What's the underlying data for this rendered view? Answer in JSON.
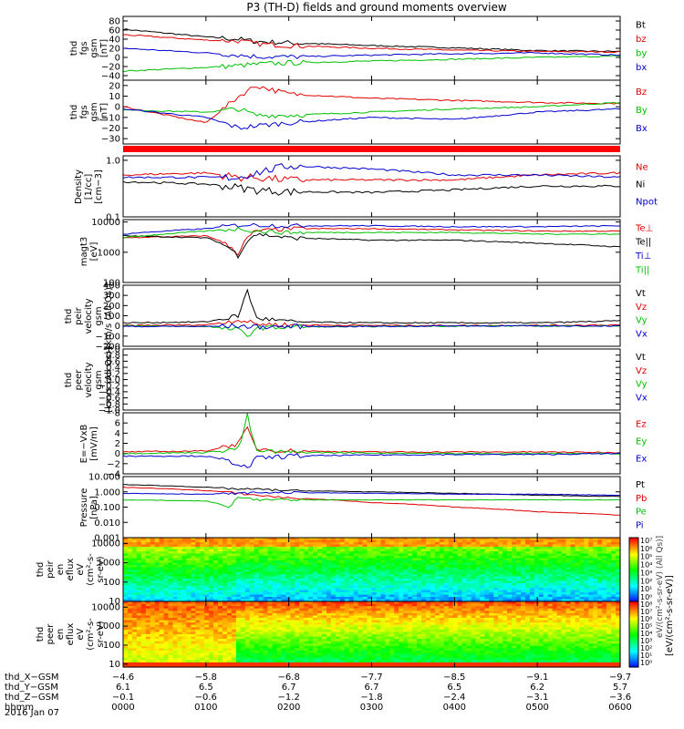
{
  "figure": {
    "title": "P3 (TH-D) fields and ground moments overview",
    "date": "2016 Jan 07",
    "colorbar_label": "[eV/(cm²-s-sr-eV)]",
    "colorbar_overlay": "eV/(cm²-s-sr-eV) (All Qs)]"
  },
  "chart_data": [
    {
      "type": "line",
      "ylabel": [
        "thd",
        "fgs",
        "gsm",
        "[nT]"
      ],
      "ylim": [
        -50,
        90
      ],
      "ticks": [
        "80",
        "60",
        "40",
        "20",
        "0",
        "−20",
        "−40"
      ],
      "tick_values": [
        80,
        60,
        40,
        20,
        0,
        -20,
        -40
      ],
      "legend": [
        "Bt",
        "bz",
        "by",
        "bx"
      ],
      "series": [
        {
          "name": "Bt",
          "color": "#000000",
          "x": [
            0,
            1,
            1.4,
            1.6,
            2,
            3,
            4,
            5,
            6
          ],
          "values": [
            62,
            45,
            40,
            35,
            32,
            26,
            21,
            15,
            13
          ]
        },
        {
          "name": "bz",
          "color": "#e00000",
          "x": [
            0,
            1,
            1.4,
            1.6,
            2,
            3,
            4,
            5,
            6
          ],
          "values": [
            50,
            38,
            36,
            30,
            26,
            20,
            16,
            13,
            12
          ]
        },
        {
          "name": "by",
          "color": "#00c000",
          "x": [
            0,
            1,
            1.4,
            1.6,
            2,
            3,
            4,
            5,
            6
          ],
          "values": [
            -30,
            -22,
            -18,
            -15,
            -12,
            -8,
            -4,
            0,
            3
          ]
        },
        {
          "name": "bx",
          "color": "#0000d0",
          "x": [
            0,
            1,
            1.4,
            1.6,
            2,
            3,
            4,
            5,
            6
          ],
          "values": [
            20,
            10,
            5,
            2,
            1,
            5,
            8,
            10,
            5
          ]
        }
      ]
    },
    {
      "type": "line",
      "ylabel": [
        "thd",
        "fgs",
        "gsm",
        "[nT]"
      ],
      "ylim": [
        -35,
        25
      ],
      "ticks": [
        "20",
        "10",
        "0",
        "−10",
        "−20",
        "−30"
      ],
      "tick_values": [
        20,
        10,
        0,
        -10,
        -20,
        -30
      ],
      "legend": [
        "Bz",
        "By",
        "Bx"
      ],
      "series": [
        {
          "name": "Bz",
          "color": "#e00000",
          "x": [
            0,
            1,
            1.4,
            1.6,
            2,
            3,
            4,
            5,
            6
          ],
          "values": [
            0,
            -15,
            10,
            20,
            12,
            8,
            6,
            4,
            3
          ]
        },
        {
          "name": "By",
          "color": "#00c000",
          "x": [
            0,
            1,
            1.4,
            1.6,
            2,
            3,
            4,
            5,
            6
          ],
          "values": [
            -3,
            -5,
            -2,
            -8,
            -8,
            -5,
            -2,
            0,
            4
          ]
        },
        {
          "name": "Bx",
          "color": "#0000d0",
          "x": [
            0,
            1,
            1.4,
            1.6,
            2,
            3,
            4,
            5,
            6
          ],
          "values": [
            -2,
            -10,
            -20,
            -18,
            -15,
            -10,
            -12,
            -5,
            -2
          ]
        }
      ]
    },
    {
      "type": "line",
      "ylabel": [
        "Density",
        "[1/cc]",
        "[cm−3]"
      ],
      "ylim": [
        0.1,
        1.2
      ],
      "log": true,
      "ticks": [
        "1.0",
        "0.1"
      ],
      "tick_values": [
        1.0,
        0.1
      ],
      "legend": [
        "Ne",
        "Ni",
        "Npot"
      ],
      "series": [
        {
          "name": "Ne",
          "color": "#e00000",
          "x": [
            0,
            1,
            1.4,
            1.6,
            2,
            3,
            4,
            5,
            6
          ],
          "values": [
            0.55,
            0.6,
            0.5,
            0.5,
            0.45,
            0.45,
            0.45,
            0.55,
            0.6
          ]
        },
        {
          "name": "Ni",
          "color": "#000000",
          "x": [
            0,
            1,
            1.4,
            1.6,
            2,
            3,
            4,
            5,
            6
          ],
          "values": [
            0.42,
            0.38,
            0.33,
            0.3,
            0.28,
            0.27,
            0.3,
            0.35,
            0.35
          ]
        },
        {
          "name": "Npot",
          "color": "#0000d0",
          "x": [
            0,
            1,
            1.4,
            1.6,
            2,
            3,
            4,
            5,
            6
          ],
          "values": [
            0.5,
            0.5,
            0.5,
            0.6,
            0.8,
            0.7,
            0.55,
            0.55,
            0.5
          ]
        }
      ]
    },
    {
      "type": "line",
      "ylabel": [
        "magt3",
        "[eV]"
      ],
      "ylim": [
        100,
        12000
      ],
      "log": true,
      "ticks": [
        "10000",
        "1000",
        "100"
      ],
      "tick_values": [
        10000,
        1000,
        100
      ],
      "legend": [
        "Te⊥",
        "Te||",
        "Ti⊥",
        "Ti||"
      ],
      "series": [
        {
          "name": "Te⊥",
          "color": "#e00000",
          "x": [
            0,
            1,
            1.4,
            1.6,
            2,
            3,
            4,
            5,
            6
          ],
          "values": [
            3000,
            3500,
            800,
            5000,
            6000,
            6000,
            5500,
            5000,
            5000
          ]
        },
        {
          "name": "Te||",
          "color": "#000000",
          "x": [
            0,
            1,
            1.4,
            1.6,
            2,
            3,
            4,
            5,
            6
          ],
          "values": [
            3500,
            3000,
            700,
            4000,
            3000,
            2500,
            2500,
            2000,
            1500
          ]
        },
        {
          "name": "Ti⊥",
          "color": "#0000d0",
          "x": [
            0,
            1,
            1.4,
            1.6,
            2,
            3,
            4,
            5,
            6
          ],
          "values": [
            4000,
            6000,
            8000,
            8000,
            7500,
            7500,
            7000,
            7000,
            7500
          ]
        },
        {
          "name": "Ti||",
          "color": "#00c000",
          "x": [
            0,
            1,
            1.4,
            1.6,
            2,
            3,
            4,
            5,
            6
          ],
          "values": [
            3000,
            5000,
            6000,
            5000,
            4500,
            4500,
            4500,
            4000,
            4000
          ]
        }
      ]
    },
    {
      "type": "line",
      "ylabel": [
        "thd",
        "peir",
        "velocity",
        "gsm",
        "[km/s (All Qs)]"
      ],
      "ylim": [
        -200,
        400
      ],
      "ticks": [
        "400",
        "300",
        "200",
        "100",
        "0",
        "−100",
        "−200"
      ],
      "tick_values": [
        400,
        300,
        200,
        100,
        0,
        -100,
        -200
      ],
      "legend": [
        "Vt",
        "Vz",
        "Vy",
        "Vx"
      ],
      "series": [
        {
          "name": "Vt",
          "color": "#000000",
          "x": [
            0,
            1,
            1.4,
            1.5,
            1.6,
            2,
            3,
            4,
            5,
            6
          ],
          "values": [
            30,
            40,
            100,
            360,
            80,
            40,
            30,
            30,
            30,
            50
          ]
        },
        {
          "name": "Vz",
          "color": "#e00000",
          "x": [
            0,
            1,
            1.4,
            1.6,
            2,
            3,
            4,
            5,
            6
          ],
          "values": [
            5,
            10,
            60,
            20,
            10,
            5,
            5,
            5,
            10
          ]
        },
        {
          "name": "Vy",
          "color": "#00c000",
          "x": [
            0,
            1,
            1.4,
            1.5,
            1.6,
            2,
            3,
            4,
            5,
            6
          ],
          "values": [
            0,
            -5,
            -40,
            -100,
            -20,
            -10,
            -5,
            0,
            0,
            0
          ]
        },
        {
          "name": "Vx",
          "color": "#0000d0",
          "x": [
            0,
            1,
            1.4,
            1.6,
            2,
            3,
            4,
            5,
            6
          ],
          "values": [
            -5,
            -5,
            0,
            -10,
            -5,
            -5,
            0,
            0,
            0
          ]
        }
      ]
    },
    {
      "type": "line",
      "ylabel": [
        "thd",
        "peer",
        "velocity",
        "gsm",
        "[km/s (All Qs)]"
      ],
      "ylim": [
        -1.0,
        1.0
      ],
      "ticks": [
        "1.0",
        "0.8",
        "0.6",
        "0.4",
        "0.2",
        "0.0",
        "−0.2",
        "−0.4",
        "−0.6",
        "−0.8",
        "−1.0"
      ],
      "tick_values": [
        1.0,
        0.8,
        0.6,
        0.4,
        0.2,
        0.0,
        -0.2,
        -0.4,
        -0.6,
        -0.8,
        -1.0
      ],
      "legend": [
        "Vt",
        "Vz",
        "Vy",
        "Vx"
      ],
      "series": []
    },
    {
      "type": "line",
      "ylabel": [
        "E=−VxB",
        "[mV/m]"
      ],
      "ylim": [
        -4,
        8
      ],
      "ticks": [
        "8",
        "6",
        "4",
        "2",
        "0",
        "−2",
        "−4"
      ],
      "tick_values": [
        8,
        6,
        4,
        2,
        0,
        -2,
        -4
      ],
      "legend": [
        "Ez",
        "Ey",
        "Ex"
      ],
      "series": [
        {
          "name": "Ez",
          "color": "#e00000",
          "x": [
            0,
            1,
            1.4,
            1.5,
            1.6,
            2,
            3,
            4,
            5,
            6
          ],
          "values": [
            0.3,
            0.5,
            2,
            5,
            1,
            0.5,
            0.3,
            0.3,
            0.3,
            0.2
          ]
        },
        {
          "name": "Ey",
          "color": "#00c000",
          "x": [
            0,
            1,
            1.4,
            1.5,
            1.6,
            2,
            3,
            4,
            5,
            6
          ],
          "values": [
            0,
            0.2,
            1,
            7.5,
            0.5,
            0.2,
            0.1,
            0,
            0,
            0
          ]
        },
        {
          "name": "Ex",
          "color": "#0000d0",
          "x": [
            0,
            1,
            1.4,
            1.5,
            1.6,
            2,
            3,
            4,
            5,
            6
          ],
          "values": [
            -0.5,
            -0.5,
            -2,
            -3,
            -1,
            -0.5,
            -0.3,
            -0.2,
            -0.2,
            0
          ]
        }
      ]
    },
    {
      "type": "line",
      "ylabel": [
        "Pressure",
        "[nPa]"
      ],
      "ylim": [
        0.001,
        10
      ],
      "log": true,
      "ticks": [
        "10.000",
        "1.000",
        "0.100",
        "0.010",
        "0.001"
      ],
      "tick_values": [
        10,
        1,
        0.1,
        0.01,
        0.001
      ],
      "legend": [
        "Pt",
        "Pb",
        "Pe",
        "Pi"
      ],
      "series": [
        {
          "name": "Pt",
          "color": "#000000",
          "x": [
            0,
            1,
            1.4,
            1.6,
            2,
            3,
            4,
            5,
            6
          ],
          "values": [
            3,
            2,
            1.5,
            1.5,
            1.2,
            1,
            0.8,
            0.6,
            0.5
          ]
        },
        {
          "name": "Pb",
          "color": "#e00000",
          "x": [
            0,
            1,
            1.4,
            1.6,
            2,
            3,
            4,
            5,
            6
          ],
          "values": [
            2,
            1.2,
            0.8,
            0.6,
            0.4,
            0.2,
            0.1,
            0.05,
            0.03
          ]
        },
        {
          "name": "Pe",
          "color": "#00c000",
          "x": [
            0,
            1,
            1.3,
            1.4,
            1.6,
            2,
            3,
            4,
            5,
            6
          ],
          "values": [
            0.3,
            0.25,
            0.08,
            0.5,
            0.3,
            0.3,
            0.3,
            0.3,
            0.3,
            0.3
          ]
        },
        {
          "name": "Pi",
          "color": "#0000d0",
          "x": [
            0,
            1,
            1.4,
            1.6,
            2,
            3,
            4,
            5,
            6
          ],
          "values": [
            0.8,
            0.7,
            0.8,
            0.9,
            0.9,
            0.8,
            0.7,
            0.7,
            0.6
          ]
        }
      ]
    },
    {
      "type": "heatmap",
      "ylabel": [
        "thd",
        "peir",
        "en",
        "eflux",
        "eV",
        "(cm²-s-",
        "sr-eV)"
      ],
      "ylim": [
        10,
        20000
      ],
      "log": true,
      "ticks": [
        "10000",
        "1000",
        "100",
        "10"
      ]
    },
    {
      "type": "heatmap",
      "ylabel": [
        "thd",
        "peer",
        "en",
        "eflux",
        "eV",
        "(cm²-s-",
        "sr-eV)"
      ],
      "ylim": [
        7,
        20000
      ],
      "log": true,
      "ticks": [
        "10000",
        "1000",
        "100",
        "10"
      ]
    }
  ],
  "colorbar": {
    "ticks": [
      "10⁷",
      "10⁶",
      "10⁵",
      "10⁴",
      "10³",
      "10²",
      "10¹",
      "10⁰"
    ],
    "ticks2": [
      "10⁸",
      "10⁷",
      "10⁶",
      "10⁵",
      "10⁴",
      "10³",
      "10²",
      "10¹",
      "10⁰"
    ]
  },
  "x_axis": {
    "rows": [
      {
        "label": "thd_X−GSM",
        "values": [
          "−4.6",
          "−5.8",
          "−6.8",
          "−7.7",
          "−8.5",
          "−9.1",
          "−9.7"
        ]
      },
      {
        "label": "thd_Y−GSM",
        "values": [
          "6.1",
          "6.5",
          "6.7",
          "6.7",
          "6.5",
          "6.2",
          "5.7"
        ]
      },
      {
        "label": "thd_Z−GSM",
        "values": [
          "−0.1",
          "−0.6",
          "−1.2",
          "−1.8",
          "−2.4",
          "−3.1",
          "−3.6"
        ]
      },
      {
        "label": "hhmm",
        "values": [
          "0000",
          "0100",
          "0200",
          "0300",
          "0400",
          "0500",
          "0600"
        ]
      }
    ]
  }
}
